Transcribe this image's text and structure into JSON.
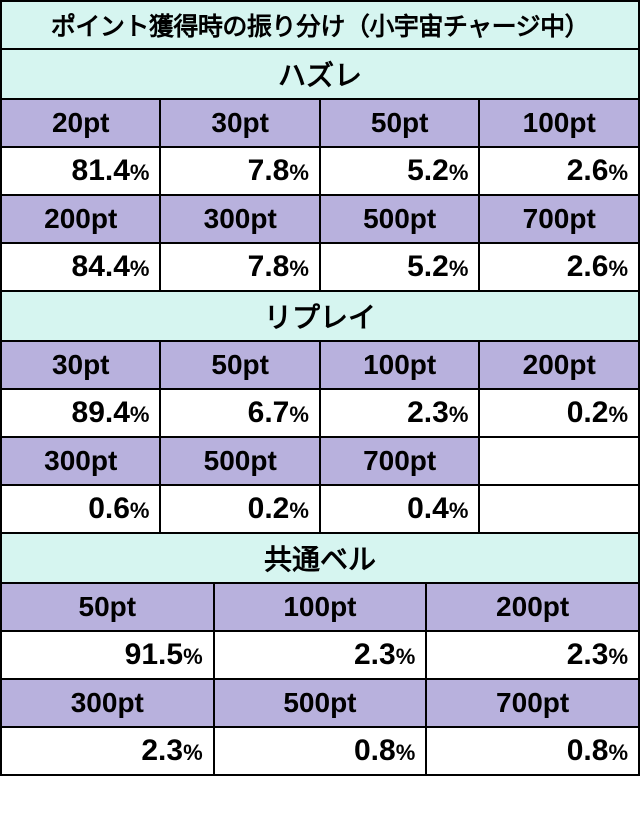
{
  "colors": {
    "title_bg": "#d6f5f0",
    "header_bg": "#b8b1dd",
    "value_bg": "#ffffff",
    "border": "#000000"
  },
  "typography": {
    "title_fontsize": 25,
    "section_fontsize": 28,
    "pt_fontsize": 28,
    "value_fontsize": 30,
    "pct_fontsize": 22,
    "weight": "bold"
  },
  "title": "ポイント獲得時の振り分け（小宇宙チャージ中）",
  "pct_suffix": "%",
  "sections": [
    {
      "name": "ハズレ",
      "cols": 4,
      "rows": [
        {
          "pts": [
            "20pt",
            "30pt",
            "50pt",
            "100pt"
          ],
          "vals": [
            "81.4",
            "7.8",
            "5.2",
            "2.6"
          ]
        },
        {
          "pts": [
            "200pt",
            "300pt",
            "500pt",
            "700pt"
          ],
          "vals": [
            "84.4",
            "7.8",
            "5.2",
            "2.6"
          ]
        }
      ]
    },
    {
      "name": "リプレイ",
      "cols": 4,
      "rows": [
        {
          "pts": [
            "30pt",
            "50pt",
            "100pt",
            "200pt"
          ],
          "vals": [
            "89.4",
            "6.7",
            "2.3",
            "0.2"
          ]
        },
        {
          "pts": [
            "300pt",
            "500pt",
            "700pt"
          ],
          "vals": [
            "0.6",
            "0.2",
            "0.4"
          ]
        }
      ]
    },
    {
      "name": "共通ベル",
      "cols": 3,
      "rows": [
        {
          "pts": [
            "50pt",
            "100pt",
            "200pt"
          ],
          "vals": [
            "91.5",
            "2.3",
            "2.3"
          ]
        },
        {
          "pts": [
            "300pt",
            "500pt",
            "700pt"
          ],
          "vals": [
            "2.3",
            "0.8",
            "0.8"
          ]
        }
      ]
    }
  ]
}
